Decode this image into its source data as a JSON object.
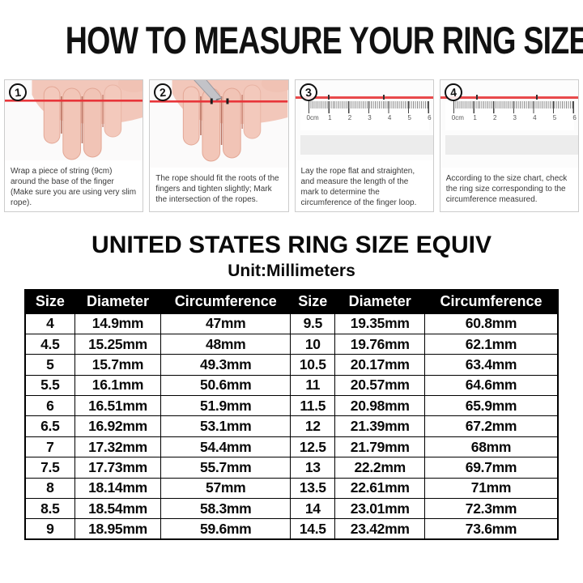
{
  "title": "HOW TO MEASURE YOUR RING SIZE",
  "steps": [
    {
      "number": "1",
      "caption": "Wrap a piece of string (9cm) around the base of the finger (Make sure you are using very slim rope)."
    },
    {
      "number": "2",
      "caption": "The rope should fit the roots of the fingers and tighten slightly; Mark the intersection of the ropes."
    },
    {
      "number": "3",
      "caption": "Lay the rope flat and straighten, and measure the length of the mark to determine the circumference of the finger loop."
    },
    {
      "number": "4",
      "caption": "According to the size chart, check the ring size corresponding to the circumference measured."
    }
  ],
  "ruler_labels": [
    "0cm",
    "1",
    "2",
    "3",
    "4",
    "5",
    "6"
  ],
  "size_chart": {
    "title": "UNITED STATES RING SIZE EQUIV",
    "subtitle": "Unit:Millimeters",
    "headers": [
      "Size",
      "Diameter",
      "Circumference",
      "Size",
      "Diameter",
      "Circumference"
    ],
    "rows": [
      [
        "4",
        "14.9mm",
        "47mm",
        "9.5",
        "19.35mm",
        "60.8mm"
      ],
      [
        "4.5",
        "15.25mm",
        "48mm",
        "10",
        "19.76mm",
        "62.1mm"
      ],
      [
        "5",
        "15.7mm",
        "49.3mm",
        "10.5",
        "20.17mm",
        "63.4mm"
      ],
      [
        "5.5",
        "16.1mm",
        "50.6mm",
        "11",
        "20.57mm",
        "64.6mm"
      ],
      [
        "6",
        "16.51mm",
        "51.9mm",
        "11.5",
        "20.98mm",
        "65.9mm"
      ],
      [
        "6.5",
        "16.92mm",
        "53.1mm",
        "12",
        "21.39mm",
        "67.2mm"
      ],
      [
        "7",
        "17.32mm",
        "54.4mm",
        "12.5",
        "21.79mm",
        "68mm"
      ],
      [
        "7.5",
        "17.73mm",
        "55.7mm",
        "13",
        "22.2mm",
        "69.7mm"
      ],
      [
        "8",
        "18.14mm",
        "57mm",
        "13.5",
        "22.61mm",
        "71mm"
      ],
      [
        "8.5",
        "18.54mm",
        "58.3mm",
        "14",
        "23.01mm",
        "72.3mm"
      ],
      [
        "9",
        "18.95mm",
        "59.6mm",
        "14.5",
        "23.42mm",
        "73.6mm"
      ]
    ]
  },
  "colors": {
    "accent_red": "#e8353a",
    "table_header_bg": "#000000",
    "table_header_text": "#ffffff",
    "panel_border": "#cccccc",
    "skin": "#f2c7ba",
    "skin_shadow": "#dba090"
  }
}
